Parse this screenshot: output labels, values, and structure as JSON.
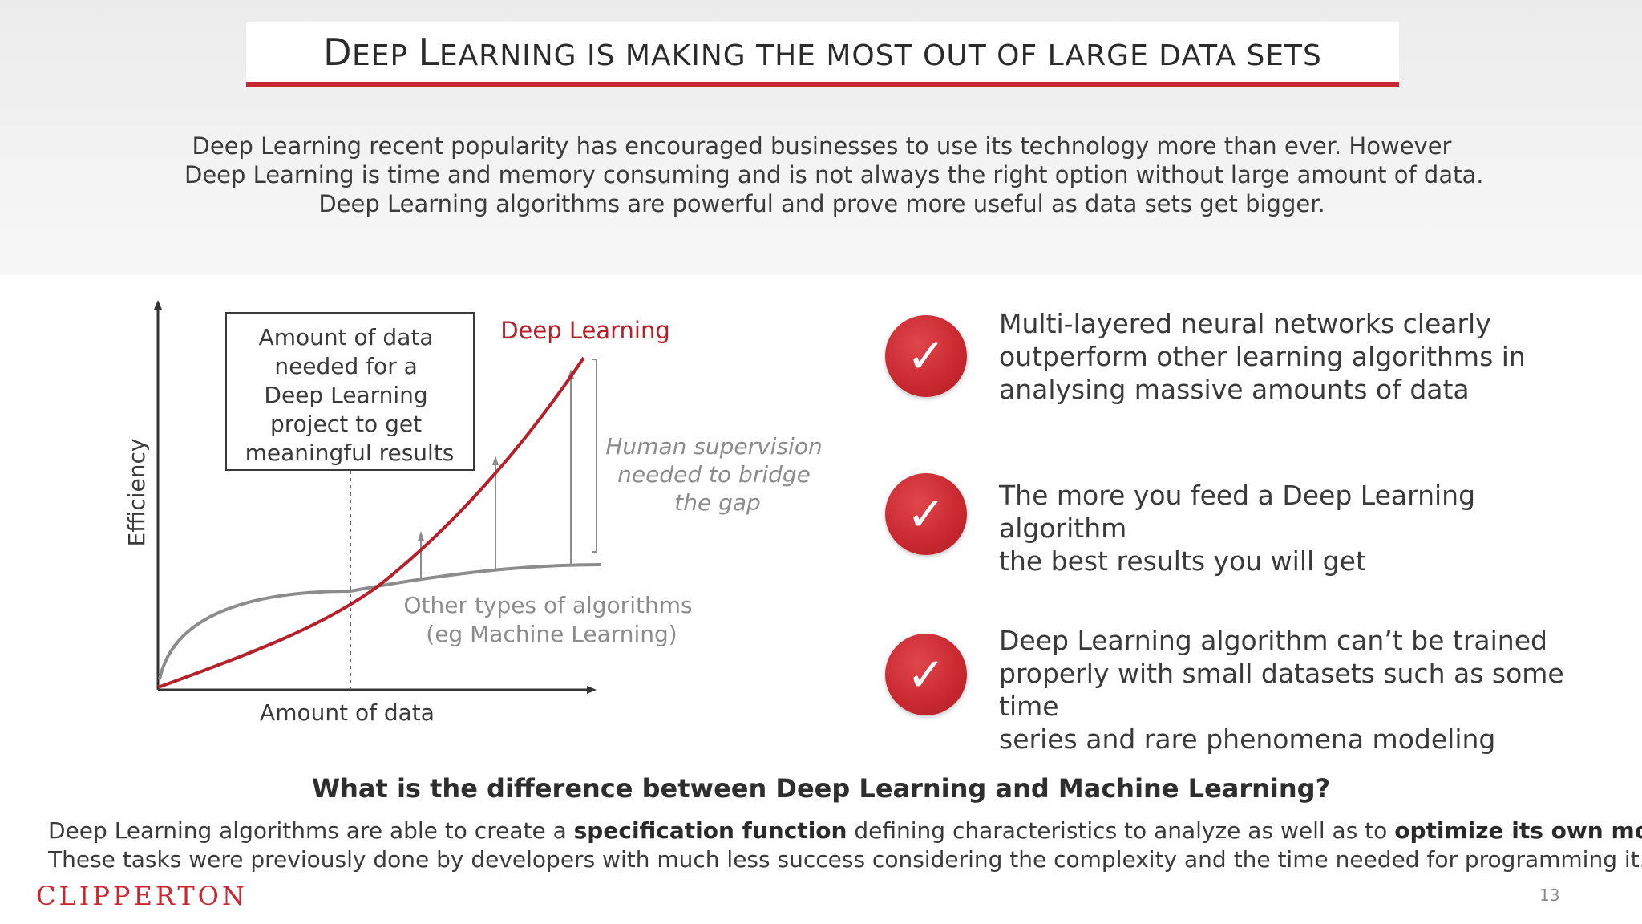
{
  "slide": {
    "title_initials": [
      "D",
      "L"
    ],
    "title_rest": [
      "EEP ",
      "EARNING IS MAKING THE MOST OUT OF LARGE DATA SETS"
    ],
    "intro_lines": [
      "Deep Learning recent popularity has encouraged businesses to use its technology more than ever.  However",
      "Deep Learning is time and memory consuming and is not always the right option without large amount of data.",
      "Deep Learning algorithms are powerful and prove more useful as data sets get bigger."
    ]
  },
  "diagram": {
    "y_axis_label": "Efficiency",
    "x_axis_label": "Amount of data",
    "box_lines": [
      "Amount of data",
      "needed for a",
      "Deep Learning",
      "project to get",
      "meaningful results"
    ],
    "deep_learning_label": "Deep Learning",
    "other_label_lines": [
      "Other types of algorithms",
      "(eg Machine Learning)"
    ],
    "gap_label_lines": [
      "Human supervision",
      "needed to bridge",
      "the gap"
    ],
    "colors": {
      "deep_learning": "#b5202a",
      "other": "#8c8c8c",
      "axis": "#333333",
      "accent": "#c8282f"
    }
  },
  "bullets": [
    {
      "icon": "checkmark-icon",
      "lines": [
        "Multi-layered neural networks clearly",
        "outperform other learning algorithms in",
        "analysing massive amounts of data"
      ]
    },
    {
      "icon": "checkmark-icon",
      "lines": [
        "The more you feed a Deep Learning algorithm",
        "the best results you will get"
      ]
    },
    {
      "icon": "checkmark-icon",
      "lines": [
        "Deep Learning algorithm can’t be trained",
        "properly with small datasets such as some time",
        "series and rare phenomena modeling"
      ]
    }
  ],
  "bottom": {
    "question": "What is the difference between Deep Learning and Machine Learning?",
    "line1_a": "Deep Learning algorithms are able to create a ",
    "line1_b": "specification function",
    "line1_c": " defining characteristics to analyze as well as to ",
    "line1_d": "optimize its own model",
    "line1_e": ".",
    "line2": "These tasks were previously done by developers with much less success considering the complexity and the time needed for programming it."
  },
  "footer": {
    "logo": "CLIPPERTON",
    "page_number": "13"
  }
}
